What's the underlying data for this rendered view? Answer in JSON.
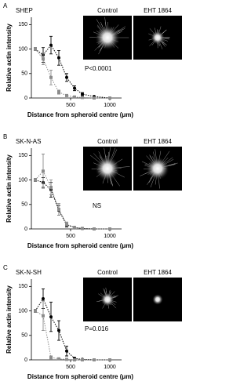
{
  "chart_data": [
    {
      "type": "line",
      "panel_label": "A",
      "cell_line": "SHEP",
      "image_labels": [
        "Control",
        "EHT 1864"
      ],
      "annotation": "P<0.0001",
      "x_label": "Distance from spheroid centre (μm)",
      "y_label": "Relative actin intensity",
      "x": [
        50,
        150,
        250,
        350,
        450,
        550,
        650,
        800,
        1000
      ],
      "series": [
        {
          "color": "#000000",
          "values": [
            100,
            88,
            108,
            82,
            42,
            20,
            8,
            3,
            0
          ],
          "errors": [
            3,
            15,
            18,
            15,
            8,
            5,
            3,
            1,
            1
          ]
        },
        {
          "color": "#8c8c8c",
          "values": [
            100,
            80,
            42,
            12,
            5,
            2,
            1,
            0,
            0
          ],
          "errors": [
            3,
            12,
            15,
            4,
            2,
            1,
            1,
            0,
            0
          ]
        }
      ],
      "xlim": [
        0,
        1150
      ],
      "ylim": [
        0,
        165
      ],
      "xticks": [
        500,
        1000
      ],
      "yticks": [
        0,
        50,
        100,
        150
      ],
      "line_style": "dotted"
    },
    {
      "type": "line",
      "panel_label": "B",
      "cell_line": "SK-N-AS",
      "image_labels": [
        "Control",
        "EHT 1864"
      ],
      "annotation": "NS",
      "x_label": "Distance from spheroid centre (μm)",
      "y_label": "Relative actin intensity",
      "x": [
        50,
        150,
        250,
        350,
        450,
        550,
        650,
        800,
        1000
      ],
      "series": [
        {
          "color": "#000000",
          "values": [
            100,
            95,
            80,
            38,
            8,
            3,
            1,
            0,
            0
          ],
          "errors": [
            3,
            10,
            15,
            10,
            4,
            1,
            1,
            0,
            0
          ]
        },
        {
          "color": "#8c8c8c",
          "values": [
            100,
            118,
            85,
            40,
            10,
            3,
            1,
            0,
            0
          ],
          "errors": [
            3,
            35,
            15,
            12,
            4,
            1,
            1,
            0,
            0
          ]
        }
      ],
      "xlim": [
        0,
        1150
      ],
      "ylim": [
        0,
        165
      ],
      "xticks": [
        500,
        1000
      ],
      "yticks": [
        0,
        50,
        100,
        150
      ],
      "line_style": "dotted"
    },
    {
      "type": "line",
      "panel_label": "C",
      "cell_line": "SK-N-SH",
      "image_labels": [
        "Control",
        "EHT 1864"
      ],
      "annotation": "P=0.016",
      "x_label": "Distance from spheroid centre (μm)",
      "y_label": "Relative actin intensity",
      "x": [
        50,
        150,
        250,
        350,
        450,
        550,
        650,
        800,
        1000
      ],
      "series": [
        {
          "color": "#000000",
          "values": [
            100,
            125,
            88,
            60,
            18,
            3,
            1,
            0,
            0
          ],
          "errors": [
            3,
            20,
            30,
            20,
            10,
            2,
            1,
            0,
            0
          ]
        },
        {
          "color": "#8c8c8c",
          "values": [
            100,
            90,
            5,
            2,
            1,
            0,
            0,
            0,
            0
          ],
          "errors": [
            3,
            30,
            3,
            1,
            1,
            0,
            0,
            0,
            0
          ]
        }
      ],
      "xlim": [
        0,
        1150
      ],
      "ylim": [
        0,
        165
      ],
      "xticks": [
        500,
        1000
      ],
      "yticks": [
        0,
        50,
        100,
        150
      ],
      "line_style": "dotted"
    }
  ]
}
